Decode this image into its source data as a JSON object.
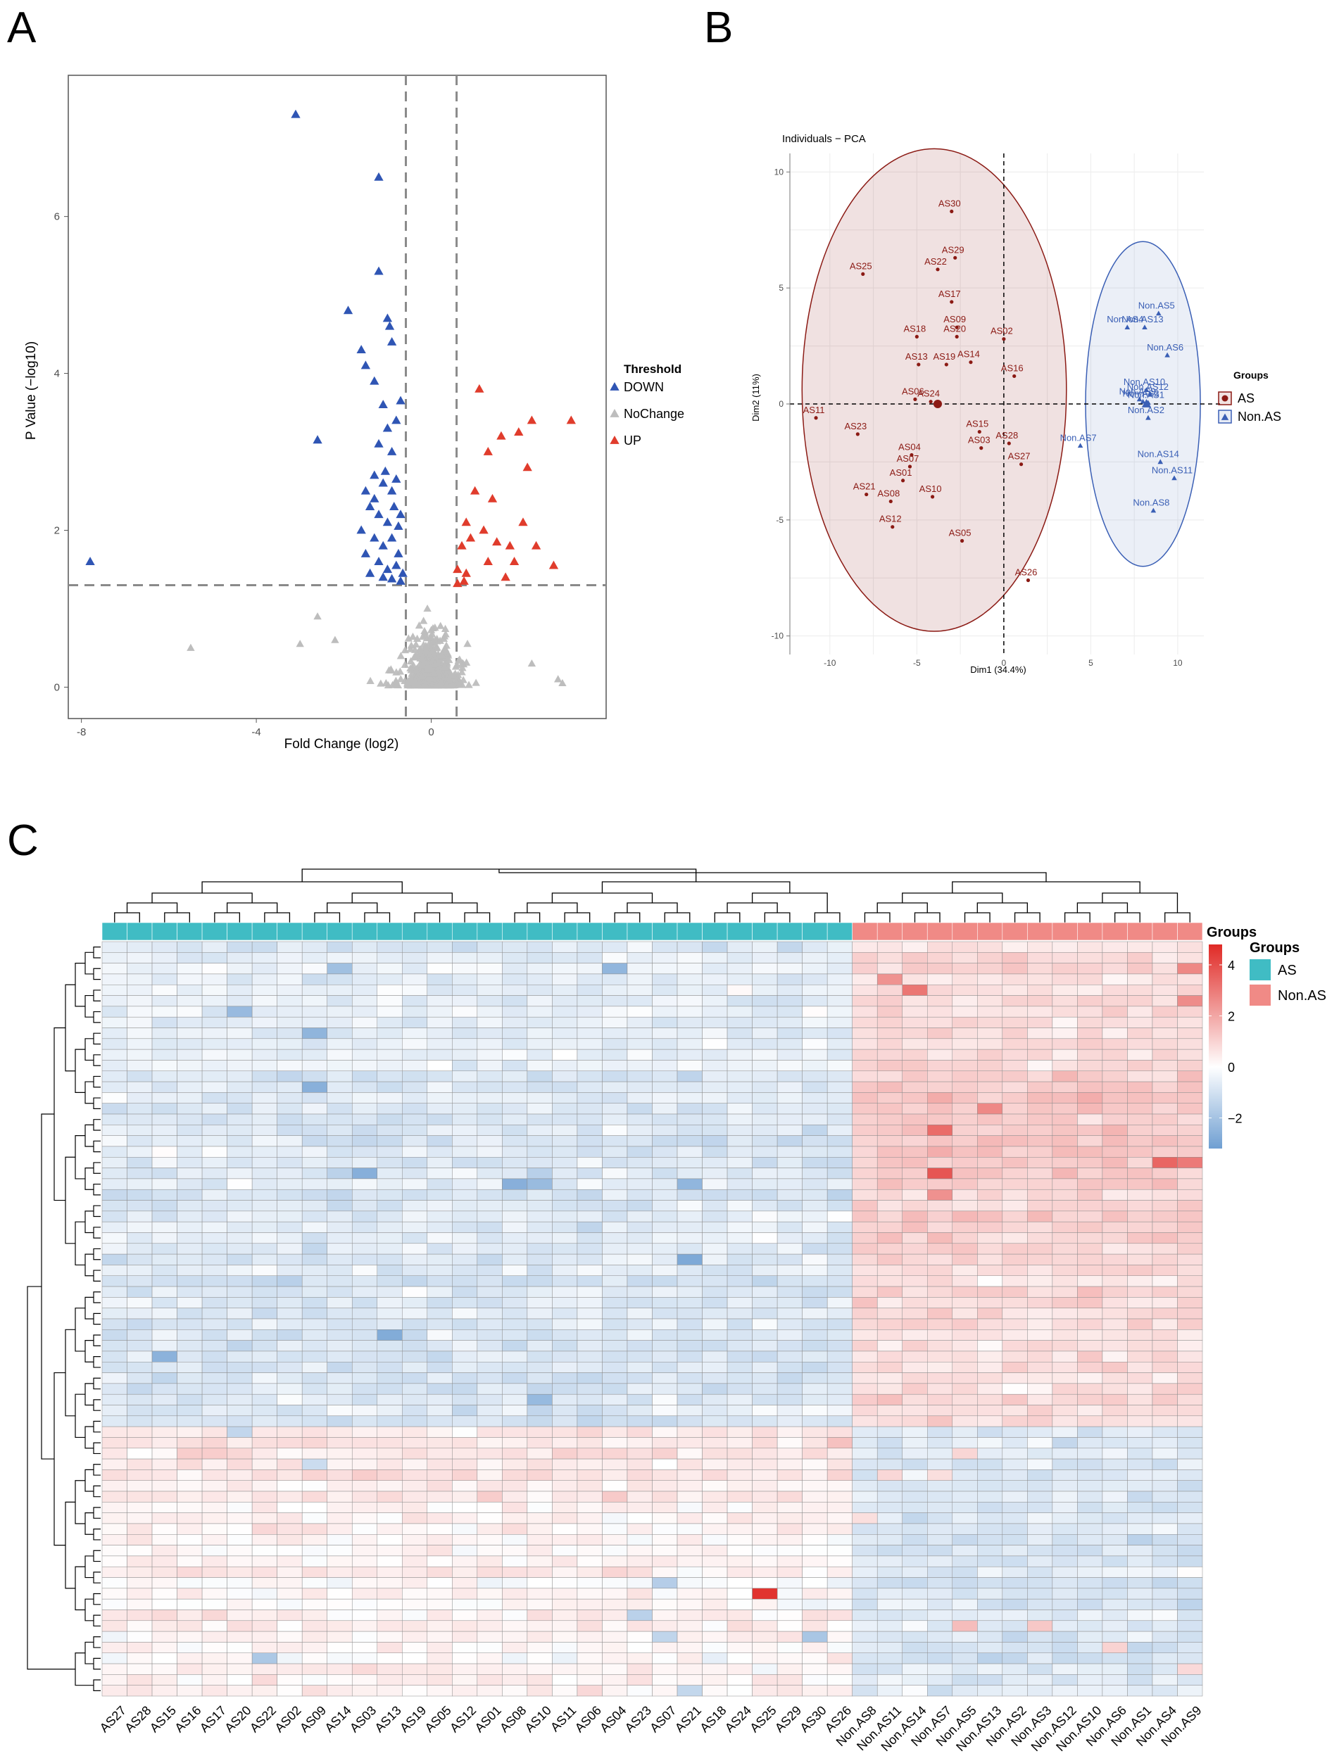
{
  "panels": {
    "a": "A",
    "b": "B",
    "c": "C"
  },
  "chart_data": [
    {
      "type": "scatter",
      "title": "",
      "xlabel": "Fold Change (log2)",
      "ylabel": "P Value (−log10)",
      "xlim": [
        -8.3,
        4.0
      ],
      "ylim": [
        -0.4,
        7.8
      ],
      "xticks": [
        -8,
        -4,
        0
      ],
      "yticks": [
        0,
        2,
        4,
        6
      ],
      "x_cutoffs": [
        -0.58,
        0.58
      ],
      "y_cutoff": 1.3,
      "legend": {
        "title": "Threshold",
        "entries": [
          {
            "label": "DOWN",
            "color": "#2f55b4"
          },
          {
            "label": "NoChange",
            "color": "#bdbdbd"
          },
          {
            "label": "UP",
            "color": "#e03c2c"
          }
        ]
      },
      "series": [
        {
          "name": "DOWN",
          "points": [
            [
              -3.1,
              7.3
            ],
            [
              -1.2,
              6.5
            ],
            [
              -1.2,
              5.3
            ],
            [
              -1.0,
              4.7
            ],
            [
              -0.95,
              4.6
            ],
            [
              -1.9,
              4.8
            ],
            [
              -0.9,
              4.4
            ],
            [
              -1.6,
              4.3
            ],
            [
              -1.5,
              4.1
            ],
            [
              -1.3,
              3.9
            ],
            [
              -1.1,
              3.6
            ],
            [
              -0.7,
              3.65
            ],
            [
              -0.8,
              3.4
            ],
            [
              -1.0,
              3.3
            ],
            [
              -1.2,
              3.1
            ],
            [
              -0.9,
              3.0
            ],
            [
              -2.6,
              3.15
            ],
            [
              -7.8,
              1.6
            ],
            [
              -1.3,
              2.7
            ],
            [
              -1.1,
              2.6
            ],
            [
              -0.9,
              2.5
            ],
            [
              -0.8,
              2.65
            ],
            [
              -1.5,
              2.5
            ],
            [
              -1.4,
              2.3
            ],
            [
              -1.2,
              2.2
            ],
            [
              -1.0,
              2.1
            ],
            [
              -0.85,
              2.3
            ],
            [
              -0.7,
              2.2
            ],
            [
              -1.6,
              2.0
            ],
            [
              -1.3,
              1.9
            ],
            [
              -1.1,
              1.8
            ],
            [
              -0.9,
              1.9
            ],
            [
              -0.75,
              1.7
            ],
            [
              -1.5,
              1.7
            ],
            [
              -1.2,
              1.6
            ],
            [
              -1.0,
              1.5
            ],
            [
              -0.8,
              1.55
            ],
            [
              -0.65,
              1.45
            ],
            [
              -1.4,
              1.45
            ],
            [
              -1.1,
              1.4
            ],
            [
              -0.9,
              1.38
            ],
            [
              -0.7,
              1.35
            ],
            [
              -1.3,
              2.4
            ],
            [
              -1.05,
              2.75
            ],
            [
              -0.75,
              2.05
            ]
          ]
        },
        {
          "name": "UP",
          "points": [
            [
              1.1,
              3.8
            ],
            [
              2.3,
              3.4
            ],
            [
              3.2,
              3.4
            ],
            [
              1.6,
              3.2
            ],
            [
              2.0,
              3.25
            ],
            [
              1.3,
              3.0
            ],
            [
              2.2,
              2.8
            ],
            [
              1.0,
              2.5
            ],
            [
              1.4,
              2.4
            ],
            [
              0.8,
              2.1
            ],
            [
              1.2,
              2.0
            ],
            [
              2.1,
              2.1
            ],
            [
              0.9,
              1.9
            ],
            [
              0.7,
              1.8
            ],
            [
              1.5,
              1.85
            ],
            [
              1.8,
              1.8
            ],
            [
              2.4,
              1.8
            ],
            [
              0.6,
              1.5
            ],
            [
              0.8,
              1.45
            ],
            [
              1.3,
              1.6
            ],
            [
              1.9,
              1.6
            ],
            [
              2.8,
              1.55
            ],
            [
              1.7,
              1.4
            ],
            [
              0.75,
              1.35
            ],
            [
              0.6,
              1.32
            ]
          ]
        }
      ]
    },
    {
      "type": "scatter",
      "title": "Individuals − PCA",
      "xlabel": "Dim1 (34.4%)",
      "ylabel": "Dim2 (11%)",
      "xlim": [
        -12.3,
        11.5
      ],
      "ylim": [
        -10.8,
        10.8
      ],
      "xticks": [
        -10,
        -5,
        0,
        5,
        10
      ],
      "yticks": [
        -10,
        -5,
        0,
        5,
        10
      ],
      "legend": {
        "title": "Groups",
        "entries": [
          {
            "label": "AS",
            "color": "#8b1a14"
          },
          {
            "label": "Non.AS",
            "color": "#3a5fb5"
          }
        ]
      },
      "series": [
        {
          "name": "AS",
          "color": "#8b1a14",
          "points": [
            [
              "AS30",
              -3.0,
              8.3
            ],
            [
              "AS29",
              -2.8,
              6.3
            ],
            [
              "AS22",
              -3.8,
              5.8
            ],
            [
              "AS25",
              -8.1,
              5.6
            ],
            [
              "AS17",
              -3.0,
              4.4
            ],
            [
              "AS18",
              -5.0,
              2.9
            ],
            [
              "AS09",
              -2.7,
              3.3
            ],
            [
              "AS20",
              -2.7,
              2.9
            ],
            [
              "AS02",
              0.0,
              2.8
            ],
            [
              "AS13",
              -4.9,
              1.7
            ],
            [
              "AS19",
              -3.3,
              1.7
            ],
            [
              "AS14",
              -1.9,
              1.8
            ],
            [
              "AS16",
              0.6,
              1.2
            ],
            [
              "AS06",
              -5.1,
              0.2
            ],
            [
              "AS24",
              -4.2,
              0.1
            ],
            [
              "AS11",
              -10.8,
              -0.6
            ],
            [
              "AS23",
              -8.4,
              -1.3
            ],
            [
              "AS15",
              -1.4,
              -1.2
            ],
            [
              "AS03",
              -1.3,
              -1.9
            ],
            [
              "AS28",
              0.3,
              -1.7
            ],
            [
              "AS27",
              1.0,
              -2.6
            ],
            [
              "AS04",
              -5.3,
              -2.2
            ],
            [
              "AS07",
              -5.4,
              -2.7
            ],
            [
              "AS01",
              -5.8,
              -3.3
            ],
            [
              "AS21",
              -7.9,
              -3.9
            ],
            [
              "AS08",
              -6.5,
              -4.2
            ],
            [
              "AS10",
              -4.1,
              -4.0
            ],
            [
              "AS12",
              -6.4,
              -5.3
            ],
            [
              "AS05",
              -2.4,
              -5.9
            ],
            [
              "AS26",
              1.4,
              -7.6
            ]
          ]
        },
        {
          "name": "Non.AS",
          "color": "#3a5fb5",
          "points": [
            [
              "Non.AS5",
              8.9,
              3.9
            ],
            [
              "Non.AS4",
              7.1,
              3.3
            ],
            [
              "Non.AS13",
              8.1,
              3.3
            ],
            [
              "Non.AS6",
              9.4,
              2.1
            ],
            [
              "Non.AS10",
              8.2,
              0.6
            ],
            [
              "Non.AS12",
              8.4,
              0.4
            ],
            [
              "Non.AS9",
              7.8,
              0.2
            ],
            [
              "Non.AS3",
              8.0,
              0.1
            ],
            [
              "Non.AS1",
              8.3,
              0.05
            ],
            [
              "Non.AS2",
              8.3,
              -0.6
            ],
            [
              "Non.AS7",
              4.4,
              -1.8
            ],
            [
              "Non.AS14",
              9.0,
              -2.5
            ],
            [
              "Non.AS11",
              9.8,
              -3.2
            ],
            [
              "Non.AS8",
              8.6,
              -4.6
            ]
          ]
        },
        {
          "name": "AS-centroid",
          "color": "#8b1a14",
          "points": [
            [
              "",
              -3.8,
              0.0
            ]
          ]
        },
        {
          "name": "Non.AS-centroid",
          "color": "#3a5fb5",
          "points": [
            [
              "",
              8.2,
              0.0
            ]
          ]
        }
      ]
    },
    {
      "type": "heatmap",
      "legend": {
        "groups_title": "Groups",
        "annotation_label": "Groups",
        "entries": [
          {
            "label": "AS",
            "color": "#40bcc4"
          },
          {
            "label": "Non.AS",
            "color": "#f08a86"
          }
        ],
        "scale_ticks": [
          4,
          2,
          0,
          -2
        ],
        "scale_range": [
          -3.2,
          4.8
        ],
        "scale_colors": [
          "#6f9fd2",
          "#ffffff",
          "#e02a26"
        ]
      },
      "columns": [
        "AS27",
        "AS28",
        "AS15",
        "AS16",
        "AS17",
        "AS20",
        "AS22",
        "AS02",
        "AS09",
        "AS14",
        "AS03",
        "AS13",
        "AS19",
        "AS05",
        "AS12",
        "AS01",
        "AS08",
        "AS10",
        "AS11",
        "AS06",
        "AS04",
        "AS23",
        "AS07",
        "AS21",
        "AS18",
        "AS24",
        "AS25",
        "AS29",
        "AS30",
        "AS26",
        "Non.AS8",
        "Non.AS11",
        "Non.AS14",
        "Non.AS7",
        "Non.AS5",
        "Non.AS13",
        "Non.AS2",
        "Non.AS3",
        "Non.AS12",
        "Non.AS10",
        "Non.AS6",
        "Non.AS1",
        "Non.AS4",
        "Non.AS9"
      ],
      "groups": [
        "AS",
        "AS",
        "AS",
        "AS",
        "AS",
        "AS",
        "AS",
        "AS",
        "AS",
        "AS",
        "AS",
        "AS",
        "AS",
        "AS",
        "AS",
        "AS",
        "AS",
        "AS",
        "AS",
        "AS",
        "AS",
        "AS",
        "AS",
        "AS",
        "AS",
        "AS",
        "AS",
        "AS",
        "AS",
        "AS",
        "Non.AS",
        "Non.AS",
        "Non.AS",
        "Non.AS",
        "Non.AS",
        "Non.AS",
        "Non.AS",
        "Non.AS",
        "Non.AS",
        "Non.AS",
        "Non.AS",
        "Non.AS",
        "Non.AS",
        "Non.AS"
      ],
      "n_rows": 70,
      "row_clusters": [
        {
          "rows": [
            0,
            11
          ],
          "as_bias": -0.7,
          "non_bias": 0.9
        },
        {
          "rows": [
            12,
            21
          ],
          "as_bias": -0.9,
          "non_bias": 1.4
        },
        {
          "rows": [
            22,
            28
          ],
          "as_bias": -0.8,
          "non_bias": 1.2
        },
        {
          "rows": [
            29,
            44
          ],
          "as_bias": -1.0,
          "non_bias": 0.8
        },
        {
          "rows": [
            45,
            51
          ],
          "as_bias": 0.6,
          "non_bias": -0.9
        },
        {
          "rows": [
            52,
            69
          ],
          "as_bias": 0.3,
          "non_bias": -0.9
        }
      ]
    }
  ]
}
